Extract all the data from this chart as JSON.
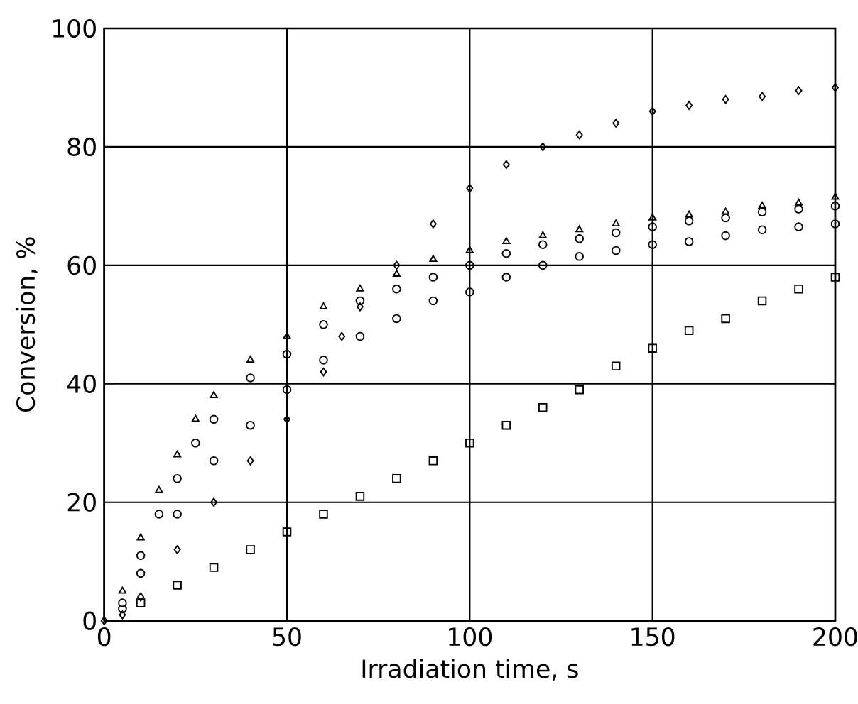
{
  "chart_data": {
    "type": "scatter",
    "xlabel": "Irradiation time, s",
    "ylabel": "Conversion, %",
    "xlim": [
      0,
      200
    ],
    "ylim": [
      0,
      100
    ],
    "xticks": [
      0,
      50,
      100,
      150,
      200
    ],
    "yticks": [
      0,
      20,
      40,
      60,
      80,
      100
    ],
    "grid": true,
    "series": [
      {
        "color": "#000000",
        "marker": "diamond",
        "x": [
          0,
          5,
          10,
          20,
          30,
          40,
          50,
          60,
          65,
          70,
          80,
          90,
          100,
          110,
          120,
          130,
          140,
          150,
          160,
          170,
          180,
          190,
          200
        ],
        "values": [
          0,
          1,
          4,
          12,
          20,
          27,
          34,
          42,
          48,
          53,
          60,
          67,
          73,
          77,
          80,
          82,
          84,
          86,
          87,
          88,
          88.5,
          89.5,
          90
        ]
      },
      {
        "color": "#000000",
        "marker": "triangle",
        "x": [
          5,
          10,
          15,
          20,
          25,
          30,
          40,
          50,
          60,
          70,
          80,
          90,
          100,
          110,
          120,
          130,
          140,
          150,
          160,
          170,
          180,
          190,
          200
        ],
        "values": [
          5,
          14,
          22,
          28,
          34,
          38,
          44,
          48,
          53,
          56,
          58.5,
          61,
          62.5,
          64,
          65,
          66,
          67,
          68,
          68.5,
          69,
          70,
          70.5,
          71.5
        ]
      },
      {
        "color": "#000000",
        "marker": "circle",
        "x": [
          5,
          10,
          15,
          20,
          25,
          30,
          40,
          50,
          60,
          70,
          80,
          90,
          100,
          110,
          120,
          130,
          140,
          150,
          160,
          170,
          180,
          190,
          200
        ],
        "values": [
          3,
          11,
          18,
          24,
          30,
          34,
          41,
          45,
          50,
          54,
          56,
          58,
          60,
          62,
          63.5,
          64.5,
          65.5,
          66.5,
          67.5,
          68,
          69,
          69.5,
          70
        ]
      },
      {
        "color": "#000000",
        "marker": "circle",
        "x": [
          5,
          10,
          20,
          30,
          40,
          50,
          60,
          70,
          80,
          90,
          100,
          110,
          120,
          130,
          140,
          150,
          160,
          170,
          180,
          190,
          200
        ],
        "values": [
          2,
          8,
          18,
          27,
          33,
          39,
          44,
          48,
          51,
          54,
          55.5,
          58,
          60,
          61.5,
          62.5,
          63.5,
          64,
          65,
          66,
          66.5,
          67
        ]
      },
      {
        "color": "#000000",
        "marker": "square",
        "x": [
          10,
          20,
          30,
          40,
          50,
          60,
          70,
          80,
          90,
          100,
          110,
          120,
          130,
          140,
          150,
          160,
          170,
          180,
          190,
          200
        ],
        "values": [
          3,
          6,
          9,
          12,
          15,
          18,
          21,
          24,
          27,
          30,
          33,
          36,
          39,
          43,
          46,
          49,
          51,
          54,
          56,
          58
        ]
      }
    ]
  }
}
